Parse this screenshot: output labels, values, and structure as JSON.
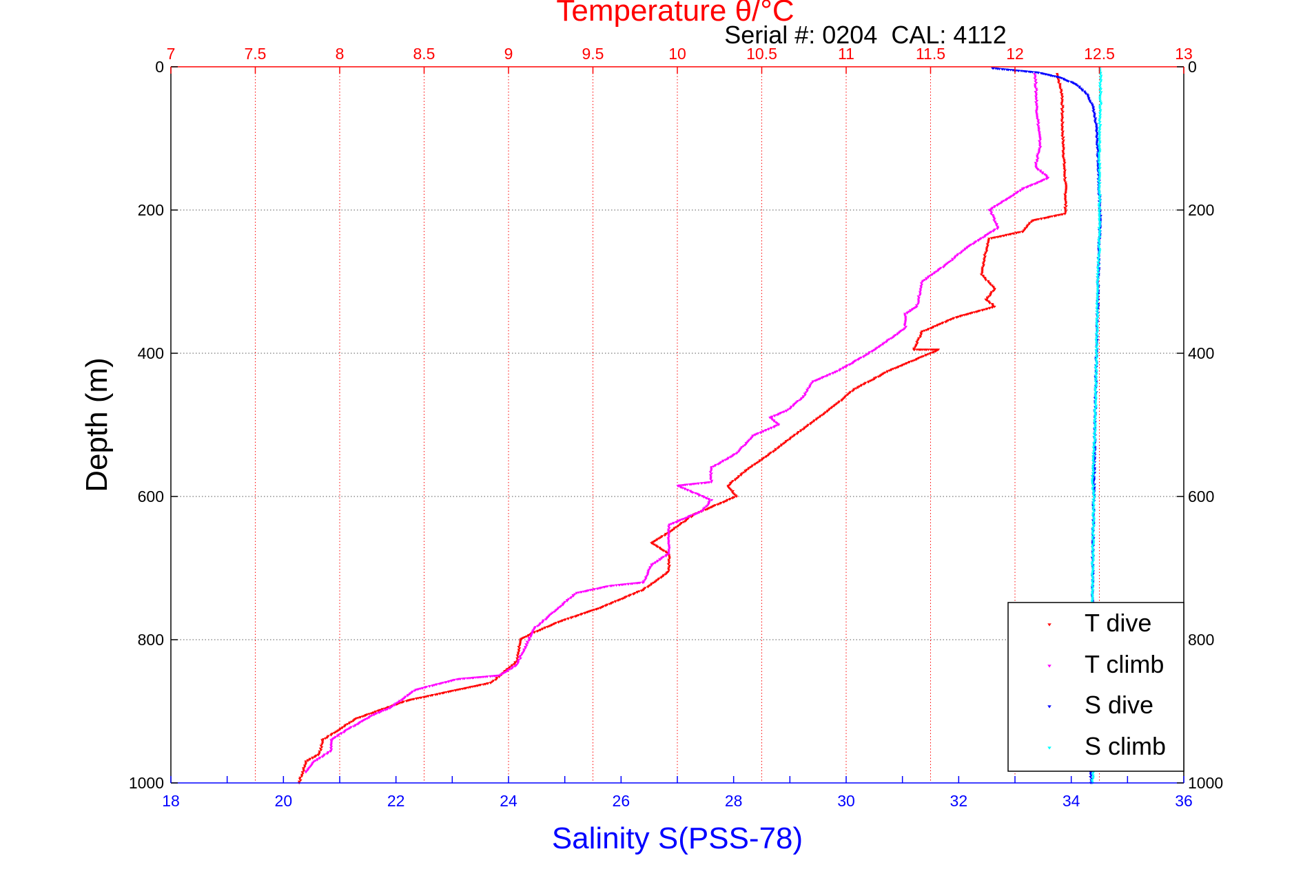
{
  "chart_data": {
    "type": "scatter",
    "title": "Temperature θ/°C",
    "annotation": "Serial #: 0204  CAL: 4112",
    "ylabel": "Depth (m)",
    "ylim": [
      1000,
      0
    ],
    "y_ticks": [
      "0",
      "200",
      "400",
      "600",
      "800",
      "1000"
    ],
    "x_bottom": {
      "label": "Salinity S(PSS-78)",
      "lim": [
        18,
        36
      ],
      "ticks": [
        "18",
        "20",
        "22",
        "24",
        "26",
        "28",
        "30",
        "32",
        "34",
        "36"
      ],
      "color": "#0000ff"
    },
    "x_top": {
      "label": "Temperature θ/°C",
      "lim": [
        7,
        13
      ],
      "ticks": [
        "7",
        "7.5",
        "8",
        "8.5",
        "9",
        "9.5",
        "10",
        "10.5",
        "11",
        "11.5",
        "12",
        "12.5",
        "13"
      ],
      "color": "#ff0000"
    },
    "grid": true,
    "legend_position": "bottom-right",
    "series": [
      {
        "name": "T dive",
        "axis": "top",
        "color": "#ff0000",
        "points": [
          [
            12.25,
            10
          ],
          [
            12.28,
            40
          ],
          [
            12.28,
            80
          ],
          [
            12.29,
            130
          ],
          [
            12.3,
            170
          ],
          [
            12.3,
            205
          ],
          [
            12.1,
            215
          ],
          [
            12.05,
            230
          ],
          [
            11.85,
            240
          ],
          [
            11.82,
            265
          ],
          [
            11.8,
            290
          ],
          [
            11.88,
            310
          ],
          [
            11.83,
            325
          ],
          [
            11.88,
            335
          ],
          [
            11.65,
            350
          ],
          [
            11.45,
            370
          ],
          [
            11.4,
            395
          ],
          [
            11.55,
            395
          ],
          [
            11.25,
            425
          ],
          [
            11.05,
            450
          ],
          [
            10.95,
            470
          ],
          [
            10.75,
            505
          ],
          [
            10.55,
            540
          ],
          [
            10.4,
            565
          ],
          [
            10.3,
            585
          ],
          [
            10.35,
            600
          ],
          [
            10.1,
            625
          ],
          [
            9.95,
            650
          ],
          [
            9.85,
            665
          ],
          [
            9.95,
            680
          ],
          [
            9.95,
            705
          ],
          [
            9.8,
            730
          ],
          [
            9.55,
            755
          ],
          [
            9.3,
            775
          ],
          [
            9.15,
            790
          ],
          [
            9.07,
            800
          ],
          [
            9.05,
            830
          ],
          [
            8.9,
            860
          ],
          [
            8.7,
            870
          ],
          [
            8.4,
            885
          ],
          [
            8.1,
            910
          ],
          [
            7.9,
            940
          ],
          [
            7.88,
            960
          ],
          [
            7.8,
            970
          ],
          [
            7.78,
            985
          ],
          [
            7.76,
            1000
          ]
        ]
      },
      {
        "name": "T climb",
        "axis": "top",
        "color": "#ff00ff",
        "points": [
          [
            12.12,
            10
          ],
          [
            12.13,
            60
          ],
          [
            12.15,
            110
          ],
          [
            12.12,
            140
          ],
          [
            12.2,
            155
          ],
          [
            12.05,
            170
          ],
          [
            11.95,
            185
          ],
          [
            11.85,
            200
          ],
          [
            11.9,
            225
          ],
          [
            11.7,
            255
          ],
          [
            11.6,
            275
          ],
          [
            11.45,
            300
          ],
          [
            11.42,
            335
          ],
          [
            11.35,
            345
          ],
          [
            11.35,
            365
          ],
          [
            11.2,
            390
          ],
          [
            11.1,
            405
          ],
          [
            10.95,
            425
          ],
          [
            10.8,
            440
          ],
          [
            10.75,
            460
          ],
          [
            10.65,
            480
          ],
          [
            10.55,
            490
          ],
          [
            10.6,
            500
          ],
          [
            10.45,
            515
          ],
          [
            10.35,
            540
          ],
          [
            10.2,
            560
          ],
          [
            10.2,
            580
          ],
          [
            10.0,
            585
          ],
          [
            10.2,
            605
          ],
          [
            10.15,
            620
          ],
          [
            9.95,
            640
          ],
          [
            9.95,
            660
          ],
          [
            9.95,
            680
          ],
          [
            9.85,
            695
          ],
          [
            9.8,
            720
          ],
          [
            9.6,
            725
          ],
          [
            9.4,
            735
          ],
          [
            9.25,
            765
          ],
          [
            9.15,
            785
          ],
          [
            9.1,
            810
          ],
          [
            9.05,
            835
          ],
          [
            8.95,
            850
          ],
          [
            8.7,
            855
          ],
          [
            8.45,
            870
          ],
          [
            8.3,
            895
          ],
          [
            8.2,
            905
          ],
          [
            8.05,
            925
          ],
          [
            7.95,
            940
          ],
          [
            7.95,
            955
          ],
          [
            7.85,
            970
          ],
          [
            7.8,
            985
          ]
        ]
      },
      {
        "name": "S dive",
        "axis": "bottom",
        "color": "#0000ff",
        "points": [
          [
            32.6,
            2
          ],
          [
            33.4,
            8
          ],
          [
            33.8,
            15
          ],
          [
            34.1,
            25
          ],
          [
            34.3,
            40
          ],
          [
            34.4,
            60
          ],
          [
            34.45,
            90
          ],
          [
            34.48,
            130
          ],
          [
            34.5,
            180
          ],
          [
            34.52,
            210
          ],
          [
            34.5,
            240
          ],
          [
            34.48,
            300
          ],
          [
            34.45,
            400
          ],
          [
            34.42,
            500
          ],
          [
            34.4,
            600
          ],
          [
            34.38,
            700
          ],
          [
            34.38,
            800
          ],
          [
            34.38,
            900
          ],
          [
            34.35,
            1000
          ]
        ]
      },
      {
        "name": "S climb",
        "axis": "bottom",
        "color": "#00ffff",
        "points": [
          [
            34.52,
            2
          ],
          [
            34.52,
            50
          ],
          [
            34.5,
            100
          ],
          [
            34.5,
            150
          ],
          [
            34.5,
            200
          ],
          [
            34.5,
            250
          ],
          [
            34.47,
            300
          ],
          [
            34.45,
            400
          ],
          [
            34.42,
            500
          ],
          [
            34.38,
            580
          ],
          [
            34.4,
            600
          ],
          [
            34.38,
            700
          ],
          [
            34.38,
            800
          ],
          [
            34.38,
            900
          ],
          [
            34.38,
            1000
          ]
        ]
      }
    ]
  }
}
